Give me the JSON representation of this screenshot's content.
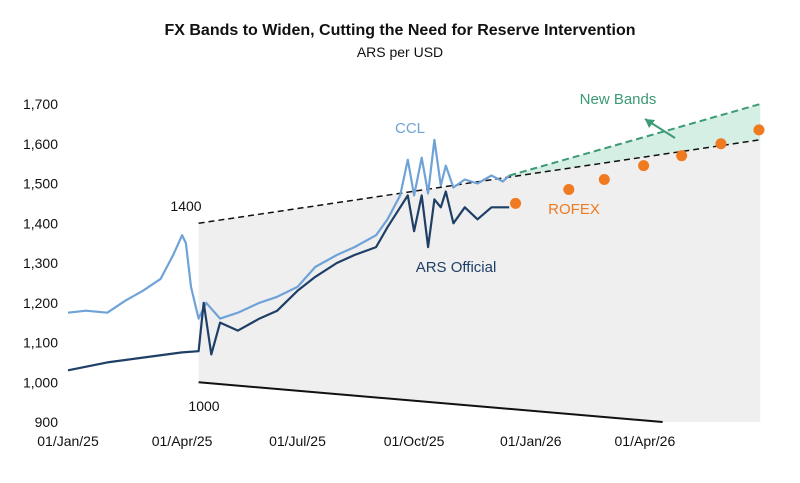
{
  "chart_data": {
    "type": "line",
    "title": "FX Bands to Widen, Cutting the Need for Reserve Intervention",
    "subtitle": "ARS per USD",
    "ylim": [
      900,
      1700
    ],
    "yticks": [
      900,
      1000,
      1100,
      1200,
      1300,
      1400,
      1500,
      1600,
      1700
    ],
    "ytick_labels": [
      "900",
      "1,000",
      "1,100",
      "1,200",
      "1,300",
      "1,400",
      "1,500",
      "1,600",
      "1,700"
    ],
    "xlim": [
      "2025-01-01",
      "2026-07-15"
    ],
    "xticks": [
      "2025-01-01",
      "2025-04-01",
      "2025-07-01",
      "2025-10-01",
      "2026-01-01",
      "2026-04-01"
    ],
    "xtick_labels": [
      "01/Jan/25",
      "01/Apr/25",
      "01/Jul/25",
      "01/Oct/25",
      "01/Jan/26",
      "01/Apr/26"
    ],
    "colors": {
      "ccl": "#6fa3d8",
      "official": "#1f3f66",
      "rofex": "#f07a20",
      "new_bands": "#3c9a75",
      "band_fill": "#efefef",
      "new_band_fill": "#d6efe4"
    },
    "series": [
      {
        "name": "CCL",
        "x": [
          "2025-01-01",
          "2025-01-15",
          "2025-02-01",
          "2025-02-15",
          "2025-03-01",
          "2025-03-15",
          "2025-03-25",
          "2025-04-01",
          "2025-04-04",
          "2025-04-08",
          "2025-04-14",
          "2025-04-20",
          "2025-05-01",
          "2025-05-15",
          "2025-06-01",
          "2025-06-15",
          "2025-07-01",
          "2025-07-15",
          "2025-08-01",
          "2025-08-15",
          "2025-09-01",
          "2025-09-10",
          "2025-09-20",
          "2025-09-26",
          "2025-10-01",
          "2025-10-07",
          "2025-10-12",
          "2025-10-17",
          "2025-10-22",
          "2025-10-26",
          "2025-11-01",
          "2025-11-10",
          "2025-11-20",
          "2025-12-01",
          "2025-12-10",
          "2025-12-15"
        ],
        "values": [
          1175,
          1180,
          1175,
          1205,
          1230,
          1260,
          1320,
          1370,
          1350,
          1240,
          1160,
          1200,
          1160,
          1175,
          1200,
          1215,
          1240,
          1290,
          1320,
          1340,
          1370,
          1410,
          1470,
          1560,
          1470,
          1565,
          1475,
          1610,
          1495,
          1545,
          1490,
          1510,
          1500,
          1520,
          1505,
          1520
        ]
      },
      {
        "name": "ARS Official",
        "x": [
          "2025-01-01",
          "2025-02-01",
          "2025-03-01",
          "2025-04-01",
          "2025-04-14",
          "2025-04-18",
          "2025-04-24",
          "2025-05-01",
          "2025-05-15",
          "2025-06-01",
          "2025-06-15",
          "2025-07-01",
          "2025-07-15",
          "2025-08-01",
          "2025-08-15",
          "2025-09-01",
          "2025-09-10",
          "2025-09-20",
          "2025-09-26",
          "2025-10-01",
          "2025-10-07",
          "2025-10-12",
          "2025-10-17",
          "2025-10-22",
          "2025-10-26",
          "2025-11-01",
          "2025-11-10",
          "2025-11-20",
          "2025-12-01",
          "2025-12-15"
        ],
        "values": [
          1030,
          1050,
          1062,
          1075,
          1078,
          1200,
          1070,
          1150,
          1130,
          1160,
          1180,
          1230,
          1265,
          1300,
          1320,
          1340,
          1390,
          1440,
          1470,
          1380,
          1470,
          1340,
          1460,
          1440,
          1480,
          1400,
          1440,
          1410,
          1440,
          1440
        ]
      }
    ],
    "bands": {
      "upper": {
        "x": [
          "2025-04-14",
          "2026-07-01"
        ],
        "values": [
          1400,
          1610
        ]
      },
      "lower": {
        "x": [
          "2025-04-14",
          "2026-04-15"
        ],
        "values": [
          1000,
          900
        ]
      },
      "new_upper": {
        "x": [
          "2025-12-15",
          "2026-07-01"
        ],
        "values": [
          1520,
          1700
        ]
      }
    },
    "rofex": {
      "x": [
        "2025-12-20",
        "2026-01-31",
        "2026-02-28",
        "2026-03-31",
        "2026-04-30",
        "2026-05-31",
        "2026-06-30"
      ],
      "values": [
        1450,
        1485,
        1510,
        1545,
        1570,
        1600,
        1635
      ]
    },
    "annotations": {
      "ccl": "CCL",
      "official": "ARS Official",
      "rofex": "ROFEX",
      "new_bands": "New Bands",
      "upper_start": "1400",
      "lower_start": "1000"
    }
  }
}
